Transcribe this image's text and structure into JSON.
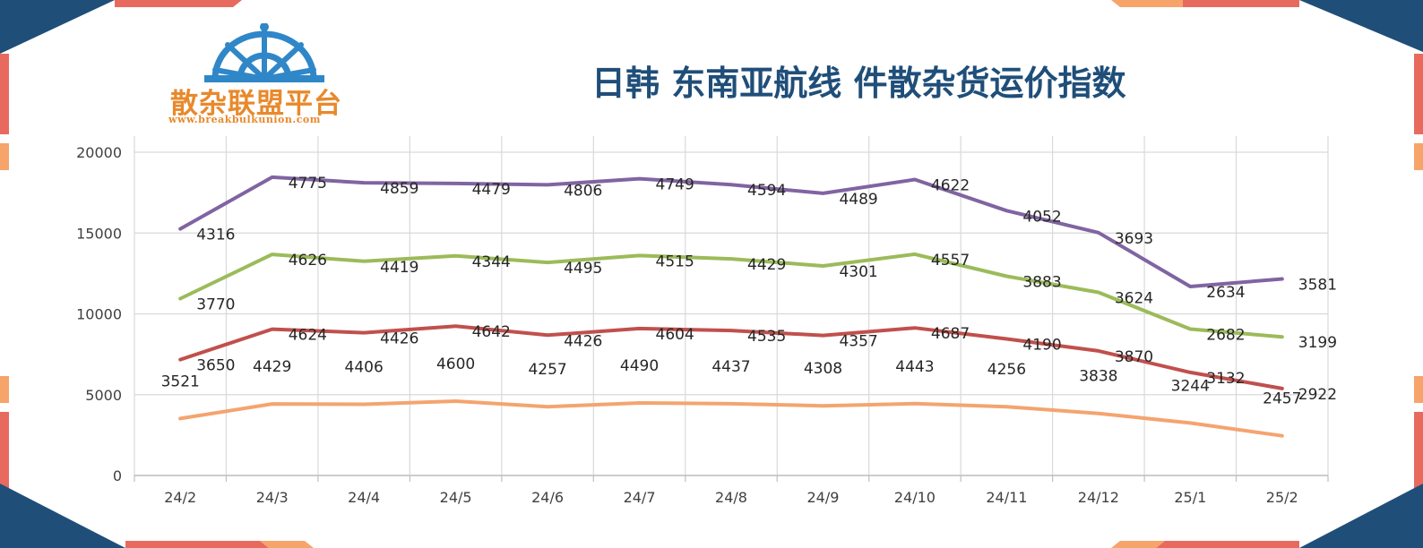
{
  "logo": {
    "name": "散杂联盟平台",
    "url": "www.breakbulkunion.com",
    "color": "#e8892c",
    "wheel_color": "#2f87c8"
  },
  "colors": {
    "frame_navy": "#1f4e79",
    "frame_red": "#e86a5f",
    "frame_peach": "#f6a46a",
    "title": "#1f4e79"
  },
  "chart_data": {
    "type": "line",
    "title": "日韩 东南亚航线 件散杂货运价指数",
    "categories": [
      "24/2",
      "24/3",
      "24/4",
      "24/5",
      "24/6",
      "24/7",
      "24/8",
      "24/9",
      "24/10",
      "24/11",
      "24/12",
      "25/1",
      "25/2"
    ],
    "ylim": [
      0,
      20000
    ],
    "yticks": [
      0,
      5000,
      10000,
      15000,
      20000
    ],
    "grid": true,
    "legend": "none",
    "stacked": true,
    "series": [
      {
        "color": "#f4a46f",
        "values": [
          3521,
          4429,
          4406,
          4600,
          4257,
          4490,
          4437,
          4308,
          4443,
          4256,
          3838,
          3244,
          2457
        ]
      },
      {
        "color": "#c0504d",
        "values": [
          3650,
          4624,
          4426,
          4642,
          4426,
          4604,
          4535,
          4357,
          4687,
          4190,
          3870,
          3132,
          2922
        ]
      },
      {
        "color": "#9bbb59",
        "values": [
          3770,
          4626,
          4419,
          4344,
          4495,
          4515,
          4429,
          4301,
          4557,
          3883,
          3624,
          2682,
          3199
        ]
      },
      {
        "color": "#8064a2",
        "values": [
          4316,
          4775,
          4859,
          4479,
          4806,
          4749,
          4594,
          4489,
          4622,
          4052,
          3693,
          2634,
          3581
        ]
      }
    ]
  }
}
